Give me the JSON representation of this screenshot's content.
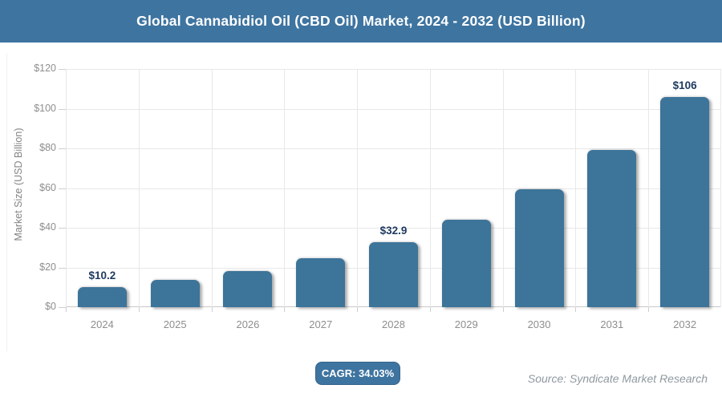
{
  "header": {
    "title": "Global Cannabidiol Oil (CBD Oil) Market, 2024 - 2032 (USD Billion)"
  },
  "chart_data": {
    "type": "bar",
    "title": "Global Cannabidiol Oil (CBD Oil) Market, 2024 - 2032 (USD Billion)",
    "categories": [
      "2024",
      "2025",
      "2026",
      "2027",
      "2028",
      "2029",
      "2030",
      "2031",
      "2032"
    ],
    "values": [
      10.2,
      13.7,
      18.3,
      24.6,
      32.9,
      44.1,
      59.2,
      79.3,
      106
    ],
    "data_labels": [
      "$10.2",
      "",
      "",
      "",
      "$32.9",
      "",
      "",
      "",
      "$106"
    ],
    "xlabel": "",
    "ylabel": "Market Size (USD Billion)",
    "ylim": [
      0,
      120
    ],
    "ytick_step": 20,
    "ytick_labels": [
      "$0",
      "$20",
      "$40",
      "$60",
      "$80",
      "$100",
      "$120"
    ],
    "grid": true,
    "legend": "none"
  },
  "footer": {
    "cagr_label": "CAGR: 34.03%",
    "source": "Source: Syndicate Market Research"
  },
  "colors": {
    "accent": "#3e74a0",
    "bar": "#3d7499",
    "navy": "#1f3a5f",
    "axistext": "#8e8e8e",
    "grid": "#e8e8e8",
    "source": "#8f999f"
  }
}
